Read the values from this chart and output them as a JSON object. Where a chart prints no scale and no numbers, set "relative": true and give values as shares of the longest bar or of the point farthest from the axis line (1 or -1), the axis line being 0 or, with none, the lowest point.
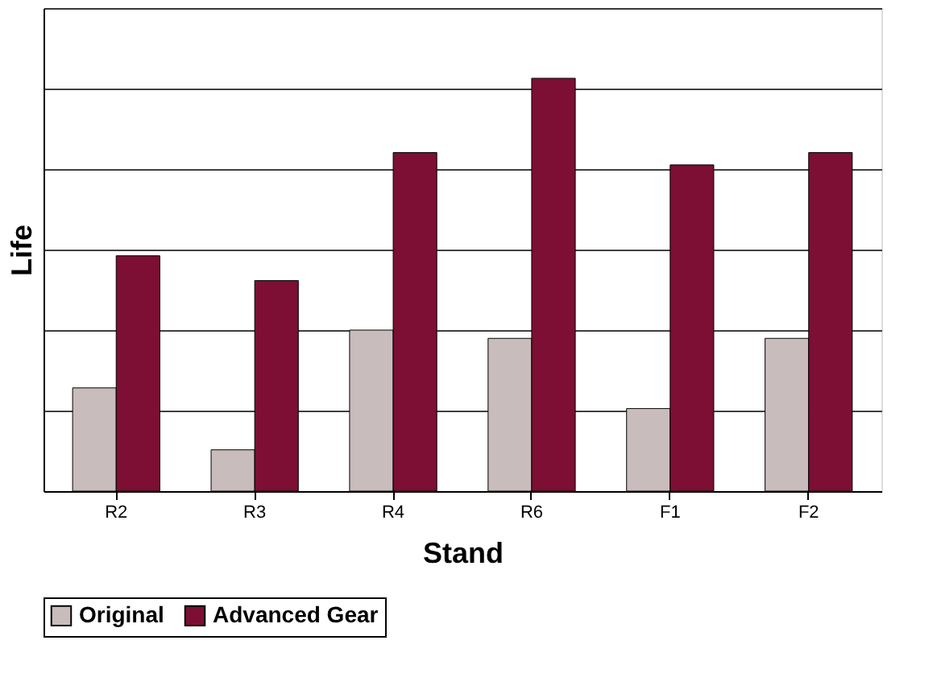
{
  "chart_data": {
    "type": "bar",
    "relative": true,
    "xlabel": "Stand",
    "ylabel": "Life",
    "categories": [
      "R2",
      "R3",
      "R4",
      "R6",
      "F1",
      "F2"
    ],
    "series": [
      {
        "name": "Original",
        "color": "#c9bcbc",
        "values": [
          0.25,
          0.1,
          0.39,
          0.37,
          0.2,
          0.37
        ]
      },
      {
        "name": "Advanced Gear",
        "color": "#7c0f33",
        "values": [
          0.57,
          0.51,
          0.82,
          1.0,
          0.79,
          0.82
        ]
      }
    ],
    "grid": "y",
    "legend": "bottom"
  }
}
